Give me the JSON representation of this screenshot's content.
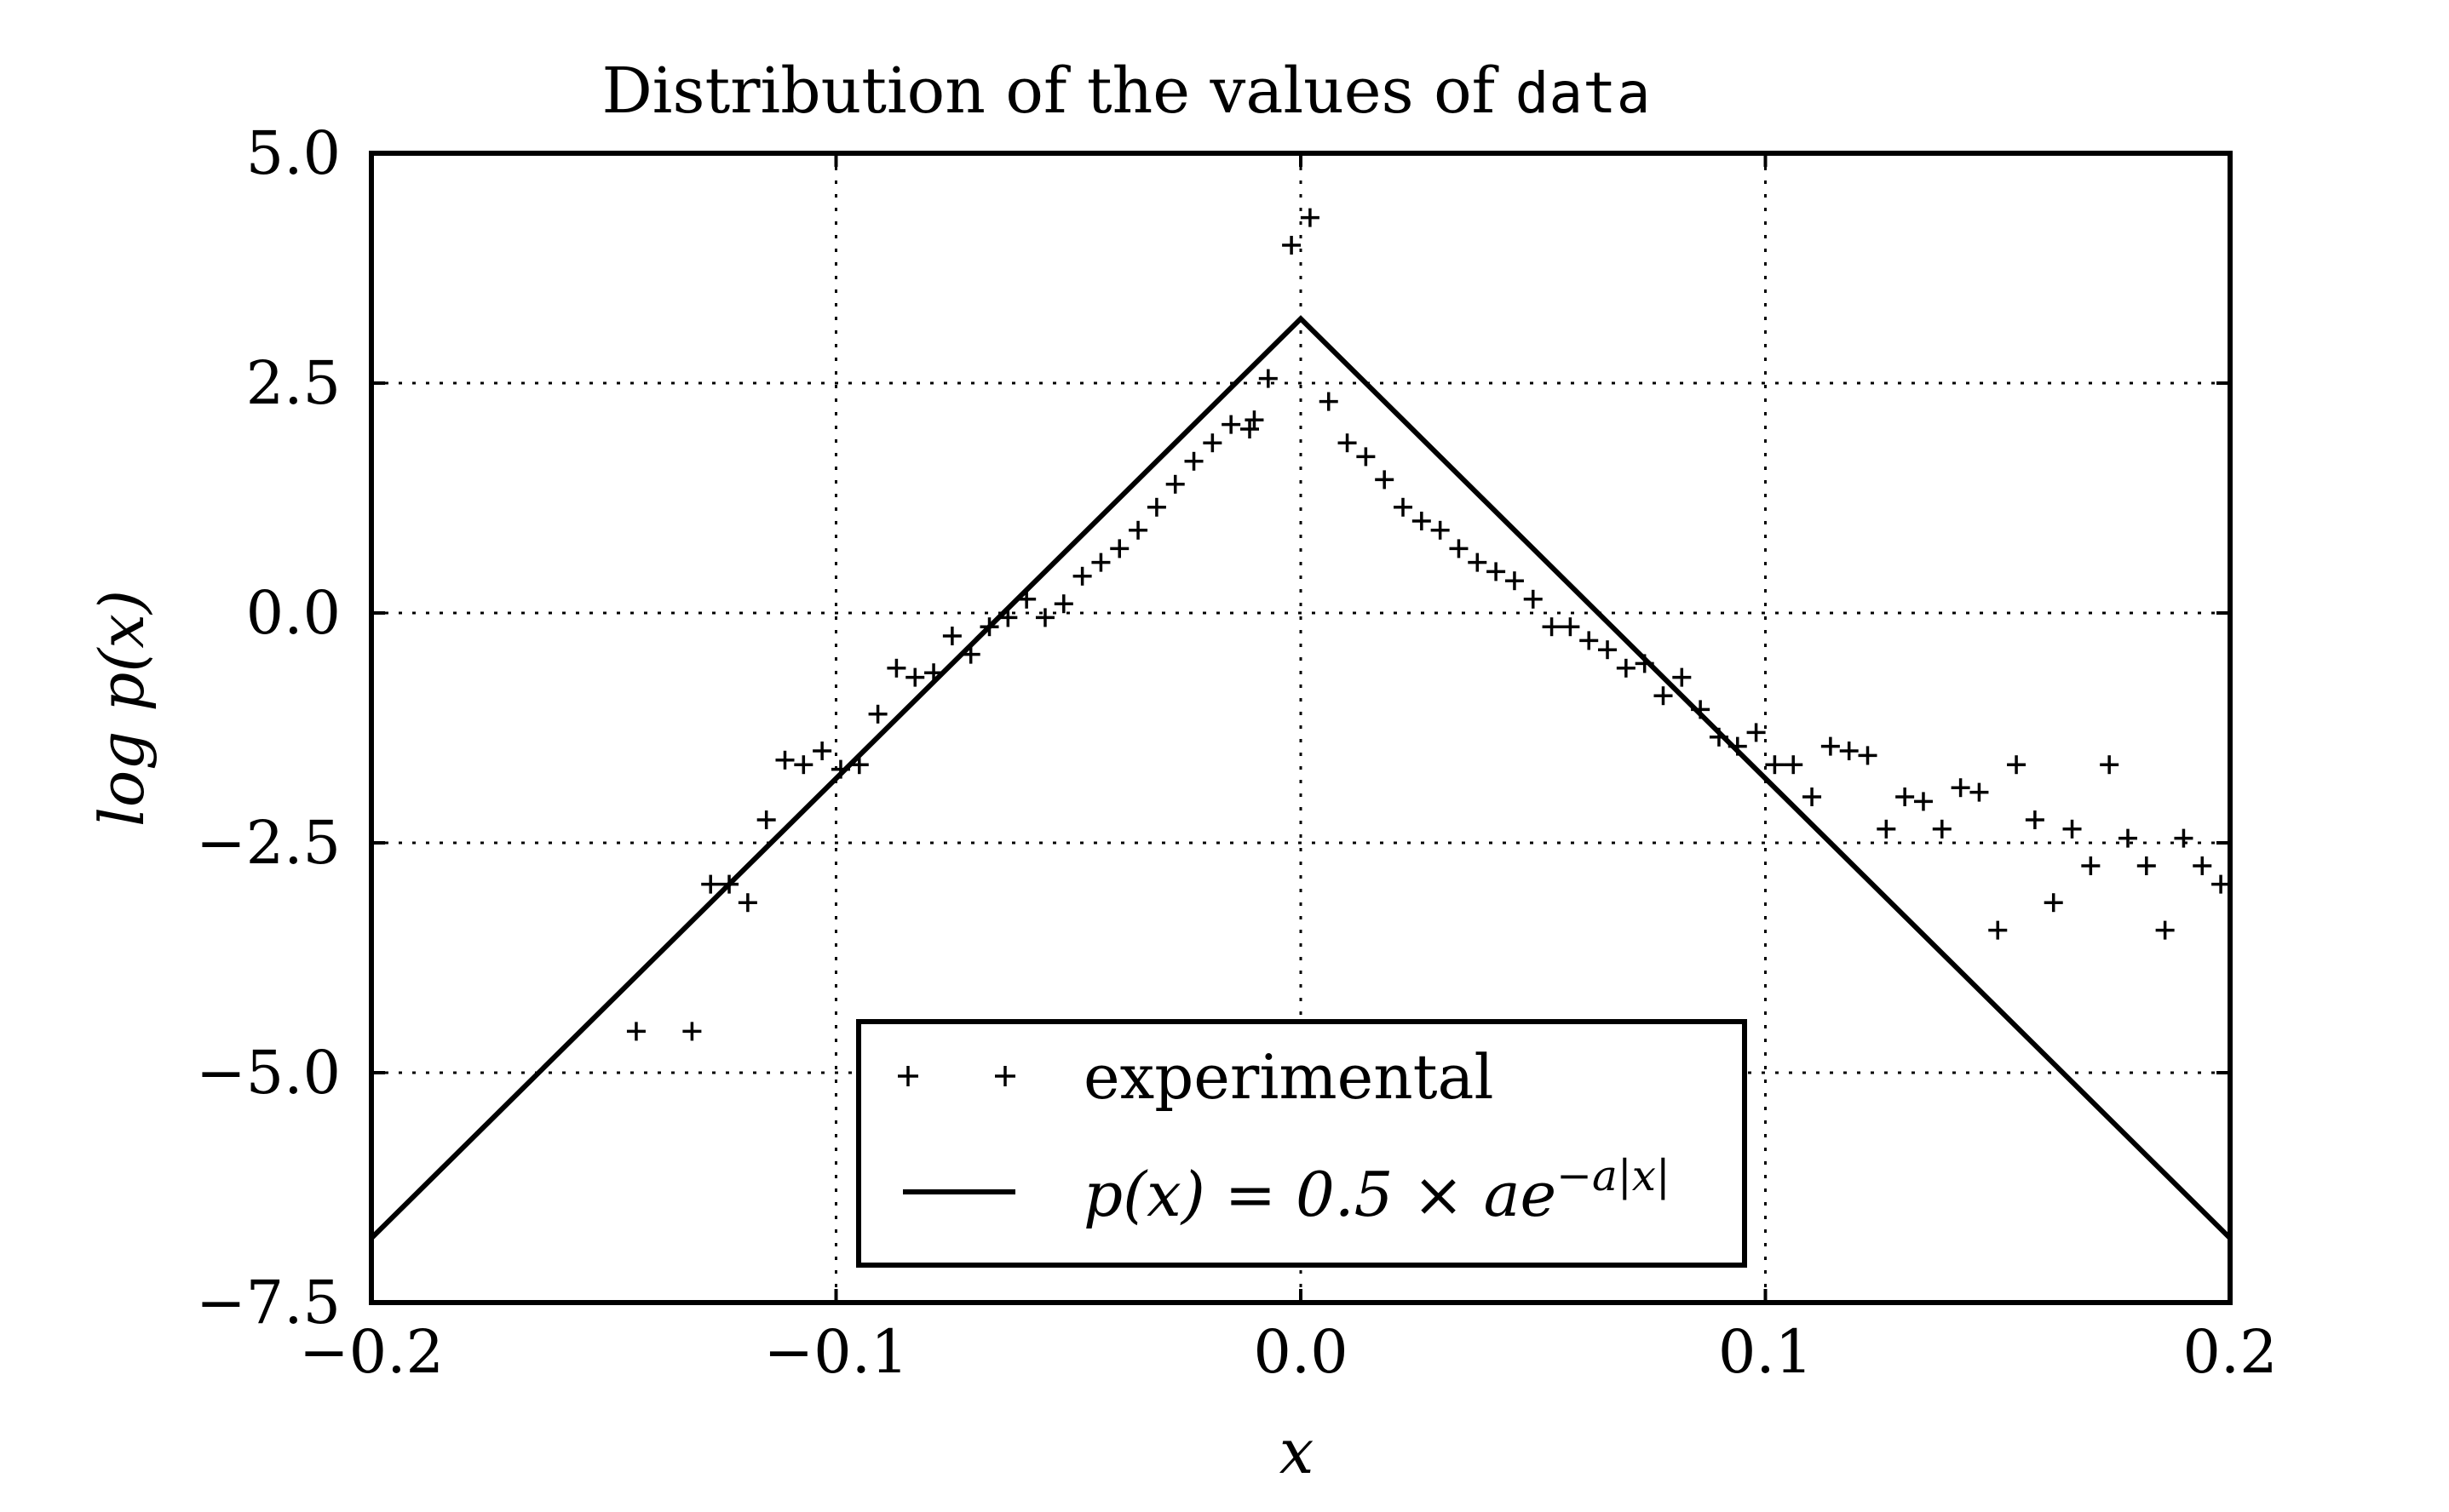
{
  "chart_data": {
    "type": "scatter",
    "title": {
      "prefix": "Distribution of the values of ",
      "code": "data"
    },
    "xlabel": "x",
    "ylabel": "log p(x)",
    "xlim": [
      -0.2,
      0.2
    ],
    "ylim": [
      -7.5,
      5.0
    ],
    "grid": true,
    "grid_style": "dotted",
    "legend_position": "lower center",
    "x_ticks": [
      -0.2,
      -0.1,
      0.0,
      0.1,
      0.2
    ],
    "x_tick_labels": [
      "−0.2",
      "−0.1",
      "0.0",
      "0.1",
      "0.2"
    ],
    "y_ticks": [
      5.0,
      2.5,
      0.0,
      -2.5,
      -5.0,
      -7.5
    ],
    "y_tick_labels": [
      "5.0",
      "2.5",
      "0.0",
      "−2.5",
      "−5.0",
      "−7.5"
    ],
    "series": [
      {
        "name": "experimental",
        "kind": "scatter",
        "marker": "plus",
        "color": "#000000",
        "points": [
          [
            -0.143,
            -4.55
          ],
          [
            -0.131,
            -4.55
          ],
          [
            -0.127,
            -2.95
          ],
          [
            -0.123,
            -2.95
          ],
          [
            -0.119,
            -3.15
          ],
          [
            -0.115,
            -2.25
          ],
          [
            -0.111,
            -1.6
          ],
          [
            -0.107,
            -1.65
          ],
          [
            -0.103,
            -1.5
          ],
          [
            -0.099,
            -1.7
          ],
          [
            -0.095,
            -1.65
          ],
          [
            -0.091,
            -1.1
          ],
          [
            -0.087,
            -0.6
          ],
          [
            -0.083,
            -0.7
          ],
          [
            -0.079,
            -0.65
          ],
          [
            -0.075,
            -0.25
          ],
          [
            -0.071,
            -0.45
          ],
          [
            -0.067,
            -0.15
          ],
          [
            -0.063,
            -0.05
          ],
          [
            -0.059,
            0.15
          ],
          [
            -0.055,
            -0.05
          ],
          [
            -0.051,
            0.1
          ],
          [
            -0.047,
            0.4
          ],
          [
            -0.043,
            0.55
          ],
          [
            -0.039,
            0.7
          ],
          [
            -0.035,
            0.9
          ],
          [
            -0.031,
            1.15
          ],
          [
            -0.027,
            1.4
          ],
          [
            -0.023,
            1.65
          ],
          [
            -0.019,
            1.85
          ],
          [
            -0.015,
            2.05
          ],
          [
            -0.011,
            2.0
          ],
          [
            -0.01,
            2.1
          ],
          [
            -0.007,
            2.55
          ],
          [
            -0.002,
            4.0
          ],
          [
            0.002,
            4.3
          ],
          [
            0.006,
            2.3
          ],
          [
            0.01,
            1.85
          ],
          [
            0.014,
            1.7
          ],
          [
            0.018,
            1.45
          ],
          [
            0.022,
            1.15
          ],
          [
            0.026,
            1.0
          ],
          [
            0.03,
            0.9
          ],
          [
            0.034,
            0.7
          ],
          [
            0.038,
            0.55
          ],
          [
            0.042,
            0.45
          ],
          [
            0.046,
            0.35
          ],
          [
            0.05,
            0.15
          ],
          [
            0.054,
            -0.15
          ],
          [
            0.058,
            -0.15
          ],
          [
            0.062,
            -0.3
          ],
          [
            0.066,
            -0.4
          ],
          [
            0.07,
            -0.6
          ],
          [
            0.074,
            -0.55
          ],
          [
            0.078,
            -0.9
          ],
          [
            0.082,
            -0.7
          ],
          [
            0.086,
            -1.05
          ],
          [
            0.09,
            -1.35
          ],
          [
            0.094,
            -1.45
          ],
          [
            0.098,
            -1.3
          ],
          [
            0.102,
            -1.65
          ],
          [
            0.106,
            -1.65
          ],
          [
            0.11,
            -2.0
          ],
          [
            0.114,
            -1.45
          ],
          [
            0.118,
            -1.5
          ],
          [
            0.122,
            -1.55
          ],
          [
            0.126,
            -2.35
          ],
          [
            0.13,
            -2.0
          ],
          [
            0.134,
            -2.05
          ],
          [
            0.138,
            -2.35
          ],
          [
            0.142,
            -1.9
          ],
          [
            0.146,
            -1.95
          ],
          [
            0.15,
            -3.45
          ],
          [
            0.154,
            -1.65
          ],
          [
            0.158,
            -2.25
          ],
          [
            0.162,
            -3.15
          ],
          [
            0.166,
            -2.35
          ],
          [
            0.17,
            -2.75
          ],
          [
            0.174,
            -1.65
          ],
          [
            0.178,
            -2.45
          ],
          [
            0.182,
            -2.75
          ],
          [
            0.186,
            -3.45
          ],
          [
            0.19,
            -2.45
          ],
          [
            0.194,
            -2.75
          ],
          [
            0.198,
            -2.95
          ]
        ]
      },
      {
        "name": "p(x) = 0.5 × ae^{−a|x|}",
        "kind": "line",
        "color": "#000000",
        "points": [
          [
            -0.2,
            -6.8
          ],
          [
            0.0,
            3.2
          ],
          [
            0.2,
            -6.8
          ]
        ]
      }
    ]
  },
  "legend": {
    "items": [
      {
        "label": "experimental"
      },
      {
        "label_parts": {
          "lhs": "p(x) = 0.5 × ",
          "a": "ae",
          "sup": "−a|x|"
        }
      }
    ]
  }
}
